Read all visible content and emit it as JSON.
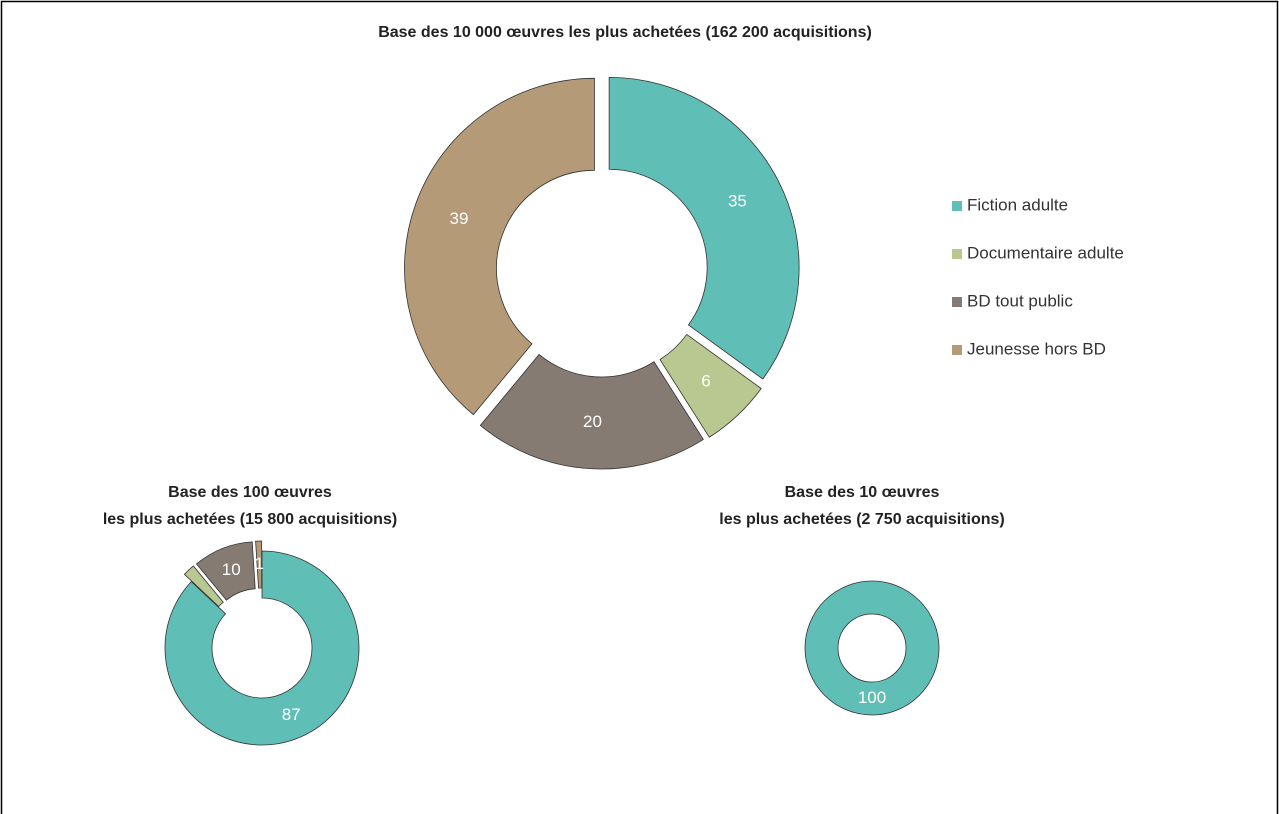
{
  "chart_data": [
    {
      "type": "donut",
      "title": "Base des 10 000 œuvres les plus achetées (162 200 acquisitions)",
      "categories": [
        "Fiction adulte",
        "Documentaire adulte",
        "BD tout public",
        "Jeunesse hors BD"
      ],
      "values": [
        35,
        6,
        20,
        39
      ],
      "colors": [
        "#5fbeb6",
        "#b9c790",
        "#857b73",
        "#b49a77"
      ],
      "legend": "right"
    },
    {
      "type": "donut",
      "title": [
        "Base des 100 œuvres",
        "les plus achetées (15 800 acquisitions)"
      ],
      "categories": [
        "Fiction adulte",
        "Documentaire adulte",
        "BD tout public",
        "Jeunesse hors BD"
      ],
      "values": [
        87,
        2,
        10,
        1
      ],
      "value_labels": [
        "87",
        null,
        "10",
        "1"
      ],
      "colors": [
        "#5fbeb6",
        "#b9c790",
        "#857b73",
        "#b49a77"
      ]
    },
    {
      "type": "donut",
      "title": [
        "Base des 10 œuvres",
        "les plus achetées (2 750 acquisitions)"
      ],
      "categories": [
        "Fiction adulte",
        "Documentaire adulte",
        "BD tout public",
        "Jeunesse hors BD"
      ],
      "values": [
        100,
        0,
        0,
        0
      ],
      "value_labels": [
        "100",
        null,
        null,
        null
      ],
      "colors": [
        "#5fbeb6",
        "#b9c790",
        "#857b73",
        "#b49a77"
      ]
    }
  ]
}
